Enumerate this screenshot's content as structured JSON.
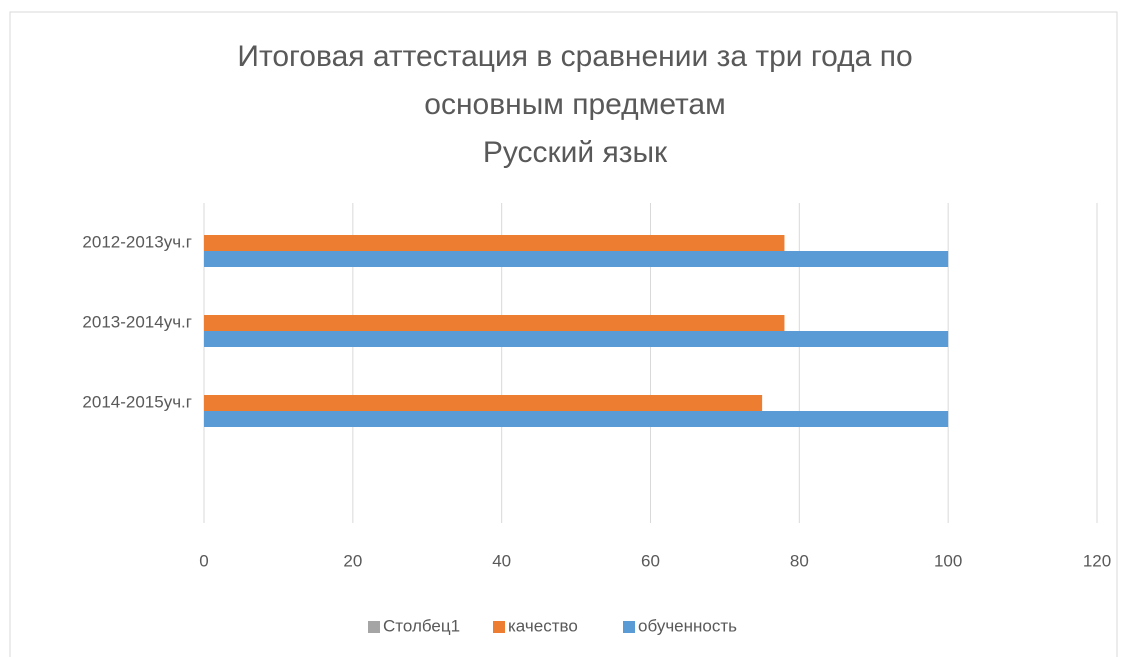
{
  "chart_data": {
    "type": "barh",
    "title": [
      "Итоговая аттестация в сравнении за три года по",
      "основным предметам",
      "Русский язык"
    ],
    "categories": [
      "2012-2013уч.г",
      "2013-2014уч.г",
      "2014-2015уч.г",
      null
    ],
    "series": [
      {
        "name": "Столбец1",
        "color": "#a5a5a5",
        "values": [
          null,
          null,
          null,
          null
        ]
      },
      {
        "name": "качество",
        "color": "#ed7d31",
        "values": [
          78,
          78,
          75,
          null
        ]
      },
      {
        "name": "обученность",
        "color": "#5b9bd5",
        "values": [
          100,
          100,
          100,
          null
        ]
      }
    ],
    "xlim": [
      0,
      120
    ],
    "xticks": [
      0,
      20,
      40,
      60,
      80,
      100,
      120
    ],
    "grid": true,
    "legend": "bottom"
  }
}
